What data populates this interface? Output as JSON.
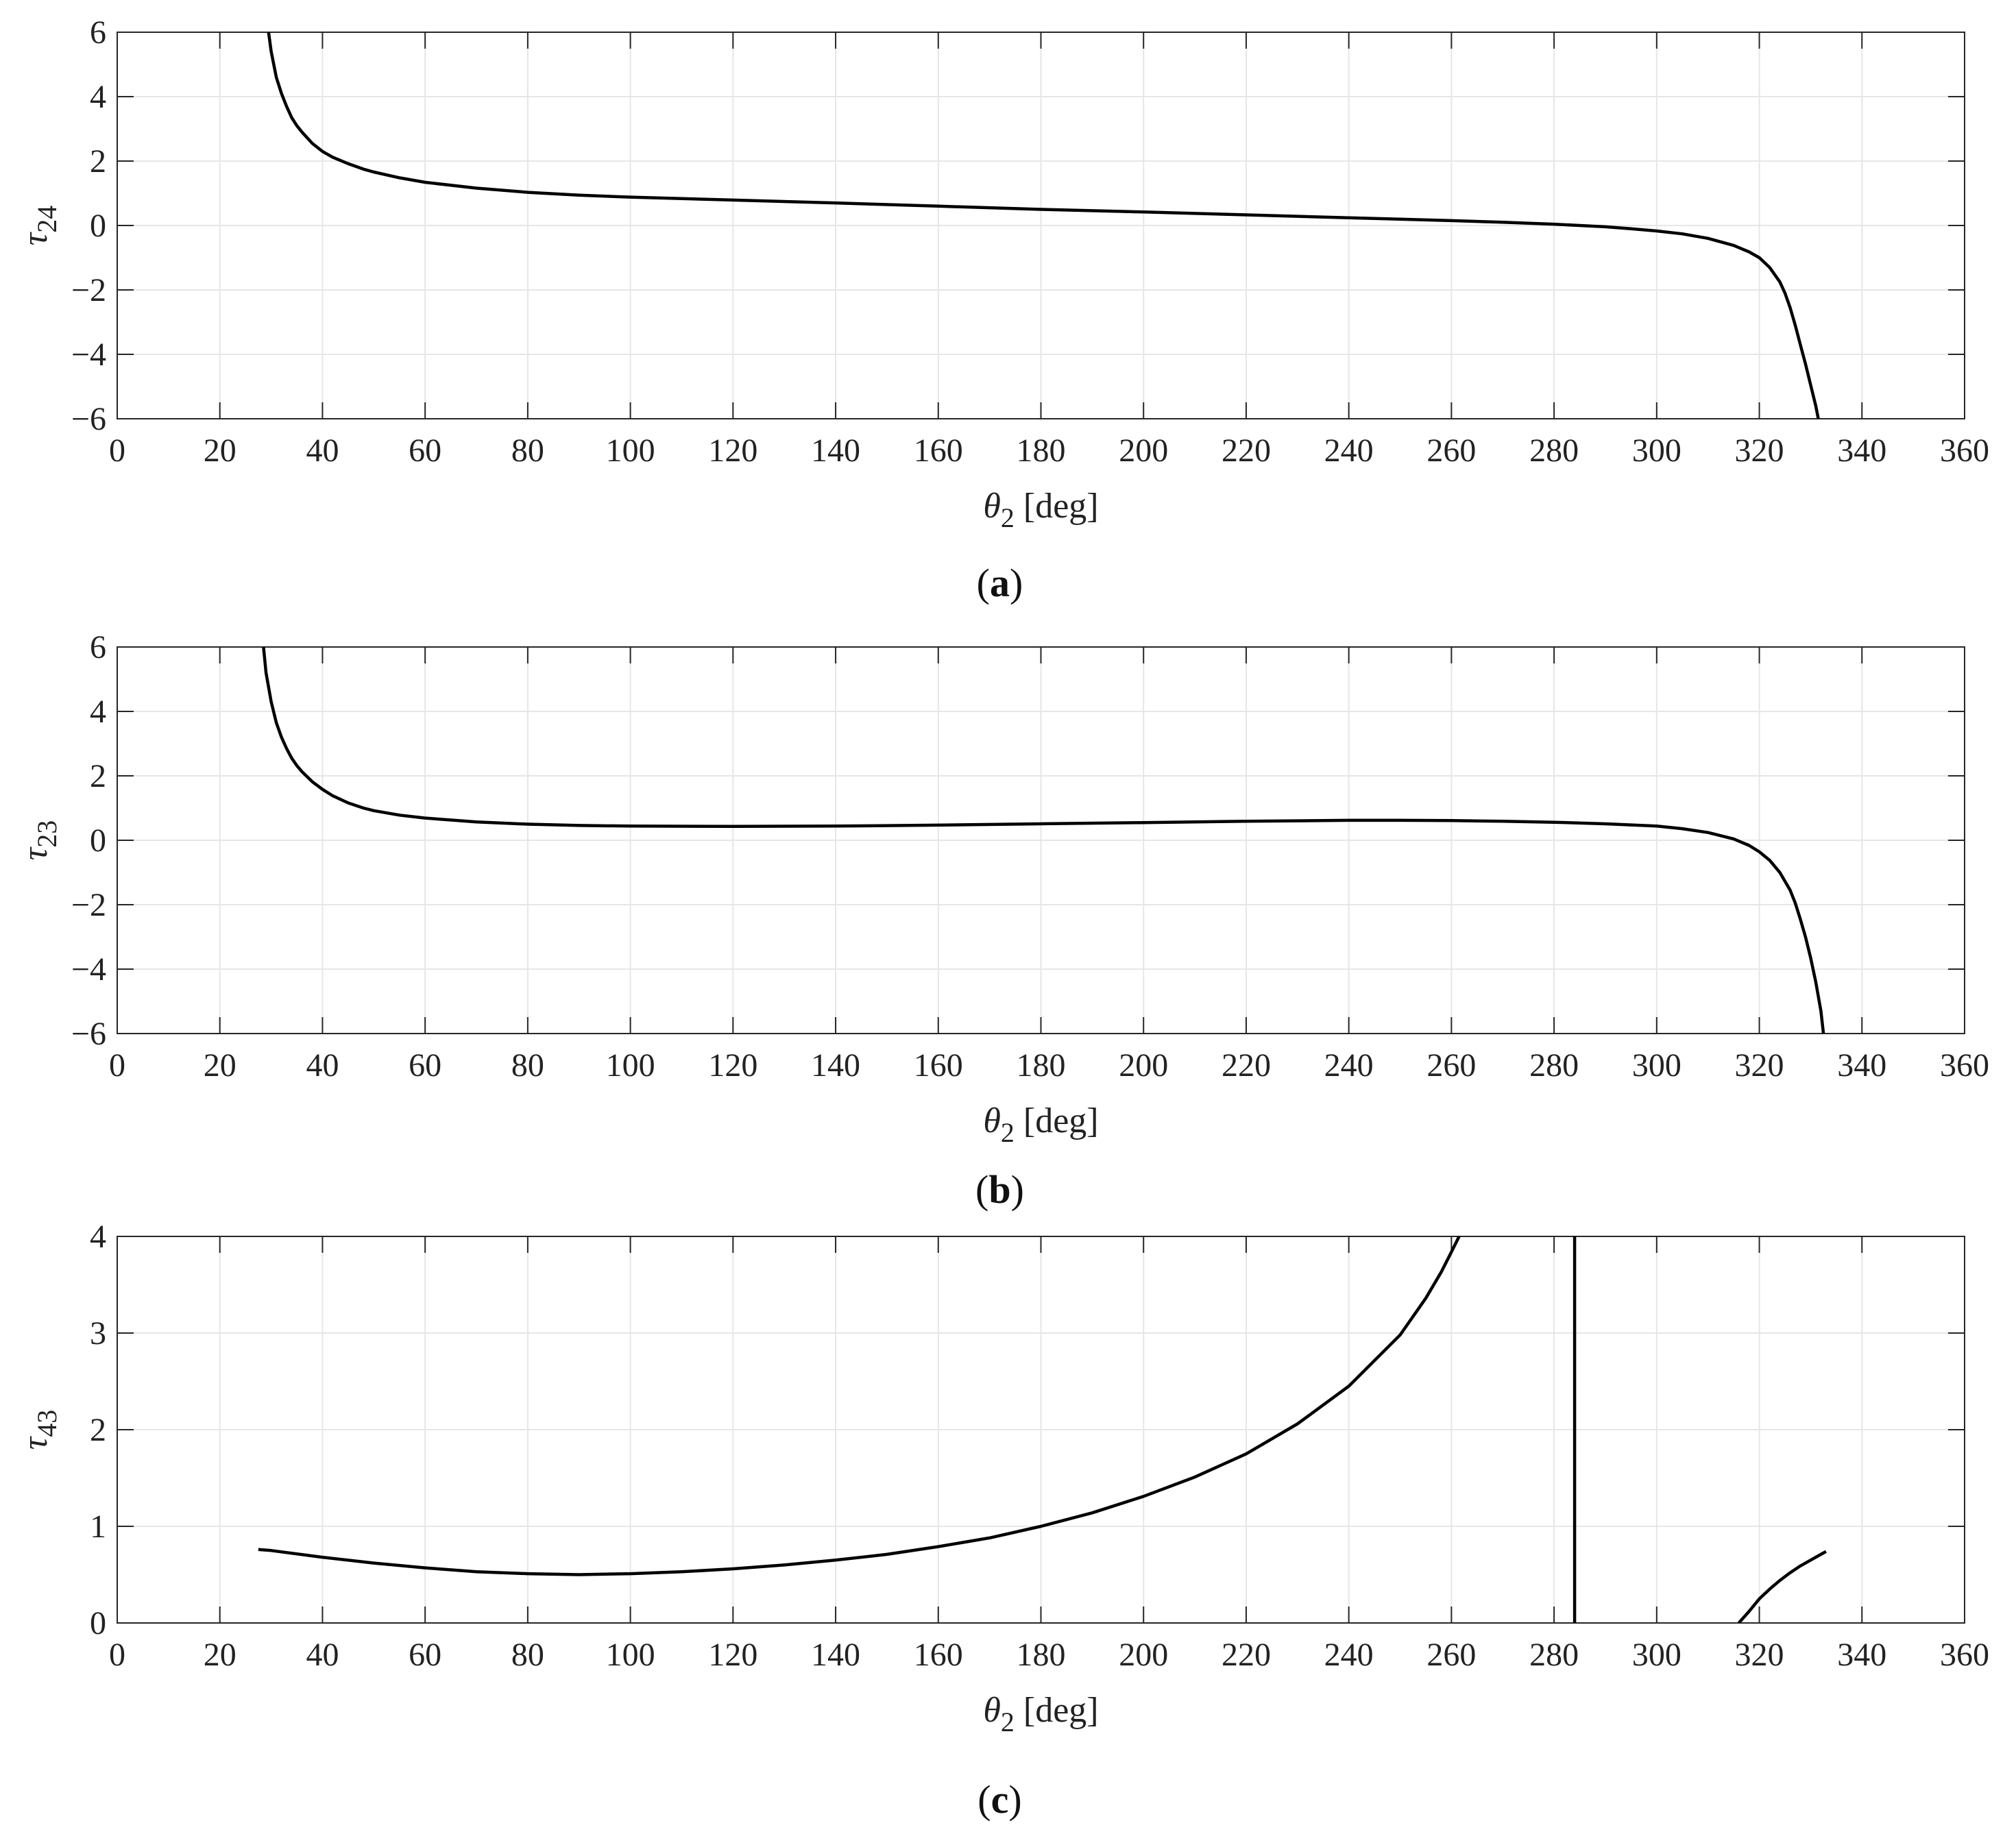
{
  "chart_data": [
    {
      "type": "line",
      "panel_label": "(a)",
      "panel_letter": "a",
      "xlabel": "θ2 [deg]",
      "xlabel_main": "θ",
      "xlabel_sub": "2",
      "xlabel_rest": " [deg]",
      "ylabel": "τ24",
      "ylabel_main": "τ",
      "ylabel_sub": "24",
      "xlim": [
        0,
        360
      ],
      "ylim": [
        -6,
        6
      ],
      "xticks": [
        0,
        20,
        40,
        60,
        80,
        100,
        120,
        140,
        160,
        180,
        200,
        220,
        240,
        260,
        280,
        300,
        320,
        340,
        360
      ],
      "yticks": [
        -6,
        -4,
        -2,
        0,
        2,
        4,
        6
      ],
      "ytick_labels": [
        "−6",
        "−4",
        "−2",
        "0",
        "2",
        "4",
        "6"
      ],
      "grid": true,
      "line_color": "#000000",
      "series": [
        {
          "x": [
            29.5,
            30,
            31,
            32,
            33,
            34,
            35,
            36,
            38,
            40,
            42,
            45,
            48,
            50,
            55,
            60,
            70,
            80,
            90,
            100,
            120,
            140,
            160,
            180,
            200,
            220,
            240,
            260,
            270,
            280,
            285,
            290,
            295,
            300,
            305,
            310,
            315,
            318,
            320,
            322,
            324,
            325,
            326,
            327,
            328,
            329,
            330,
            331,
            331.5
          ],
          "values": [
            6.0,
            5.4,
            4.6,
            4.1,
            3.7,
            3.35,
            3.1,
            2.9,
            2.55,
            2.3,
            2.12,
            1.92,
            1.75,
            1.66,
            1.48,
            1.34,
            1.16,
            1.03,
            0.94,
            0.88,
            0.79,
            0.7,
            0.6,
            0.5,
            0.42,
            0.33,
            0.24,
            0.15,
            0.1,
            0.04,
            0.0,
            -0.04,
            -0.1,
            -0.17,
            -0.26,
            -0.4,
            -0.62,
            -0.82,
            -1.0,
            -1.3,
            -1.75,
            -2.1,
            -2.55,
            -3.1,
            -3.7,
            -4.3,
            -4.95,
            -5.6,
            -6.0
          ]
        }
      ]
    },
    {
      "type": "line",
      "panel_label": "(b)",
      "panel_letter": "b",
      "xlabel": "θ2 [deg]",
      "xlabel_main": "θ",
      "xlabel_sub": "2",
      "xlabel_rest": " [deg]",
      "ylabel": "τ23",
      "ylabel_main": "τ",
      "ylabel_sub": "23",
      "xlim": [
        0,
        360
      ],
      "ylim": [
        -6,
        6
      ],
      "xticks": [
        0,
        20,
        40,
        60,
        80,
        100,
        120,
        140,
        160,
        180,
        200,
        220,
        240,
        260,
        280,
        300,
        320,
        340,
        360
      ],
      "yticks": [
        -6,
        -4,
        -2,
        0,
        2,
        4,
        6
      ],
      "ytick_labels": [
        "−6",
        "−4",
        "−2",
        "0",
        "2",
        "4",
        "6"
      ],
      "grid": true,
      "line_color": "#000000",
      "series": [
        {
          "x": [
            28.5,
            29,
            30,
            31,
            32,
            33,
            34,
            35,
            36,
            38,
            40,
            42,
            45,
            48,
            50,
            55,
            60,
            70,
            80,
            90,
            100,
            120,
            140,
            160,
            180,
            200,
            220,
            240,
            250,
            260,
            270,
            280,
            290,
            300,
            305,
            310,
            315,
            318,
            320,
            322,
            324,
            326,
            327,
            328,
            329,
            330,
            331,
            332,
            332.5
          ],
          "values": [
            6.0,
            5.2,
            4.3,
            3.65,
            3.2,
            2.85,
            2.55,
            2.32,
            2.13,
            1.82,
            1.58,
            1.38,
            1.16,
            1.0,
            0.92,
            0.78,
            0.69,
            0.57,
            0.5,
            0.46,
            0.44,
            0.43,
            0.44,
            0.47,
            0.51,
            0.55,
            0.59,
            0.62,
            0.62,
            0.61,
            0.59,
            0.56,
            0.51,
            0.44,
            0.36,
            0.24,
            0.04,
            -0.16,
            -0.36,
            -0.62,
            -1.0,
            -1.55,
            -1.95,
            -2.45,
            -3.0,
            -3.65,
            -4.4,
            -5.3,
            -6.0
          ]
        }
      ]
    },
    {
      "type": "line",
      "panel_label": "(c)",
      "panel_letter": "c",
      "xlabel": "θ2 [deg]",
      "xlabel_main": "θ",
      "xlabel_sub": "2",
      "xlabel_rest": " [deg]",
      "ylabel": "τ43",
      "ylabel_main": "τ",
      "ylabel_sub": "43",
      "xlim": [
        0,
        360
      ],
      "ylim": [
        0,
        4
      ],
      "xticks": [
        0,
        20,
        40,
        60,
        80,
        100,
        120,
        140,
        160,
        180,
        200,
        220,
        240,
        260,
        280,
        300,
        320,
        340,
        360
      ],
      "yticks": [
        0,
        1,
        2,
        3,
        4
      ],
      "ytick_labels": [
        "0",
        "1",
        "2",
        "3",
        "4"
      ],
      "grid": true,
      "line_color": "#000000",
      "series": [
        {
          "x": [
            27.5,
            30,
            40,
            50,
            60,
            70,
            80,
            90,
            100,
            110,
            120,
            130,
            140,
            150,
            160,
            170,
            180,
            190,
            200,
            210,
            220,
            230,
            240,
            250,
            255,
            258,
            260,
            261.5
          ],
          "values": [
            0.76,
            0.75,
            0.68,
            0.62,
            0.57,
            0.53,
            0.51,
            0.5,
            0.51,
            0.53,
            0.56,
            0.6,
            0.65,
            0.71,
            0.79,
            0.88,
            1.0,
            1.14,
            1.31,
            1.51,
            1.75,
            2.06,
            2.45,
            2.98,
            3.36,
            3.63,
            3.84,
            4.0
          ]
        },
        {
          "x": [
            284,
            284
          ],
          "values": [
            0,
            4
          ]
        },
        {
          "x": [
            316,
            318,
            320,
            322,
            324,
            326,
            328,
            330,
            332,
            333
          ],
          "values": [
            0.0,
            0.12,
            0.25,
            0.35,
            0.44,
            0.52,
            0.59,
            0.65,
            0.71,
            0.74
          ]
        }
      ]
    }
  ]
}
